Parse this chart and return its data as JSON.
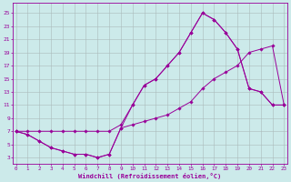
{
  "xlabel": "Windchill (Refroidissement éolien,°C)",
  "line_color": "#990099",
  "bg_color": "#cceaea",
  "xlim": [
    -0.3,
    23.3
  ],
  "ylim": [
    2.0,
    26.5
  ],
  "xticks": [
    0,
    1,
    2,
    3,
    4,
    5,
    6,
    7,
    8,
    9,
    10,
    11,
    12,
    13,
    14,
    15,
    16,
    17,
    18,
    19,
    20,
    21,
    22,
    23
  ],
  "yticks": [
    3,
    5,
    7,
    9,
    11,
    13,
    15,
    17,
    19,
    21,
    23,
    25
  ],
  "curve_top_x": [
    0,
    1,
    2,
    3,
    4,
    5,
    6,
    7,
    8,
    9,
    10,
    11,
    12,
    13,
    14,
    15,
    16,
    17,
    18,
    19,
    20,
    21,
    22,
    23
  ],
  "curve_top_y": [
    7,
    7,
    7,
    7,
    7,
    7,
    7,
    7,
    7,
    8,
    11,
    14,
    15,
    17,
    19,
    22,
    25,
    24,
    22,
    19.5,
    13.5,
    13,
    11,
    11
  ],
  "curve_mid_x": [
    0,
    1,
    2,
    3,
    4,
    5,
    6,
    7,
    8,
    9,
    10,
    11,
    12,
    13,
    14,
    15,
    16,
    17,
    18,
    19,
    20,
    21,
    22,
    23
  ],
  "curve_mid_y": [
    7,
    6.5,
    5.5,
    4.5,
    4.0,
    3.5,
    3.5,
    3.0,
    3.5,
    7.5,
    11,
    14,
    15,
    17,
    19,
    22,
    25,
    24,
    22,
    19.5,
    13.5,
    13,
    11,
    11
  ],
  "curve_bot_x": [
    0,
    1,
    2,
    3,
    4,
    5,
    6,
    7,
    8,
    9,
    10,
    11,
    12,
    13,
    14,
    15,
    16,
    17,
    18,
    19,
    20,
    21,
    22,
    23
  ],
  "curve_bot_y": [
    7,
    6.5,
    5.5,
    4.5,
    4.0,
    3.5,
    3.5,
    3.0,
    3.5,
    7.5,
    8.0,
    8.5,
    9.0,
    9.5,
    10.5,
    11.5,
    13.5,
    15.0,
    16.0,
    17.0,
    19.0,
    19.5,
    20.0,
    11.0
  ]
}
